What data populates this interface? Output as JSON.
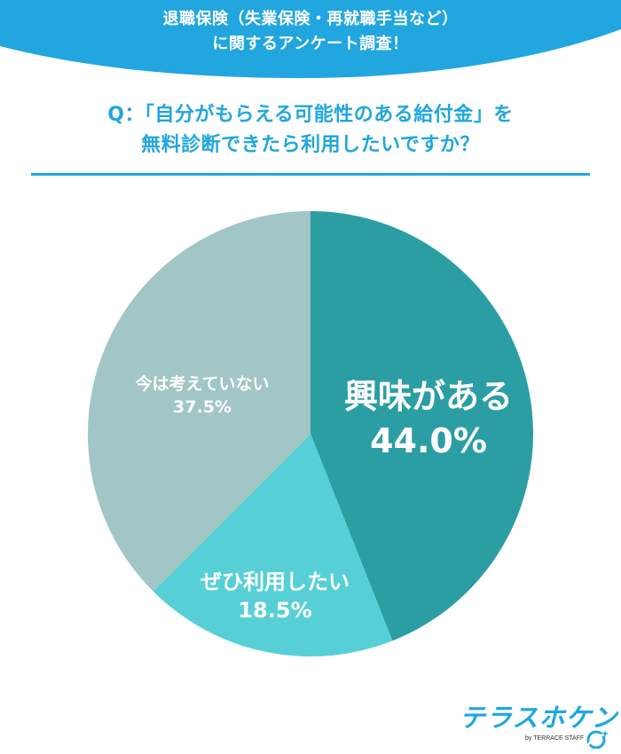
{
  "header": {
    "title_line1": "退職保険（失業保険・再就職手当など）",
    "title_line2": "に関するアンケート調査！",
    "bg_color": "#21a6df"
  },
  "question": {
    "line1": "Q：「自分がもらえる可能性のある給付金」を",
    "line2": "無料診断できたら利用したいですか？",
    "color": "#21a6df"
  },
  "chart_data": {
    "type": "pie",
    "title": "自分がもらえる可能性のある給付金を無料診断できたら利用したいですか？",
    "categories": [
      "興味がある",
      "ぜひ利用したい",
      "今は考えていない"
    ],
    "values": [
      44.0,
      18.5,
      37.5
    ],
    "unit": "%",
    "colors": [
      "#2b9ea4",
      "#56d0d6",
      "#a2c5c6"
    ],
    "start_angle_deg": 0,
    "direction": "clockwise from 12 o'clock",
    "legend": "none (labels inside slices)"
  },
  "labels": {
    "interested": {
      "name": "興味がある",
      "value": "44.0%"
    },
    "definitely": {
      "name": "ぜひ利用したい",
      "value": "18.5%"
    },
    "not_now": {
      "name": "今は考えていない",
      "value": "37.5%"
    }
  },
  "logo": {
    "main": "テラスホケン",
    "sub": "by TERRACE STAFF",
    "color": "#21a6df"
  }
}
